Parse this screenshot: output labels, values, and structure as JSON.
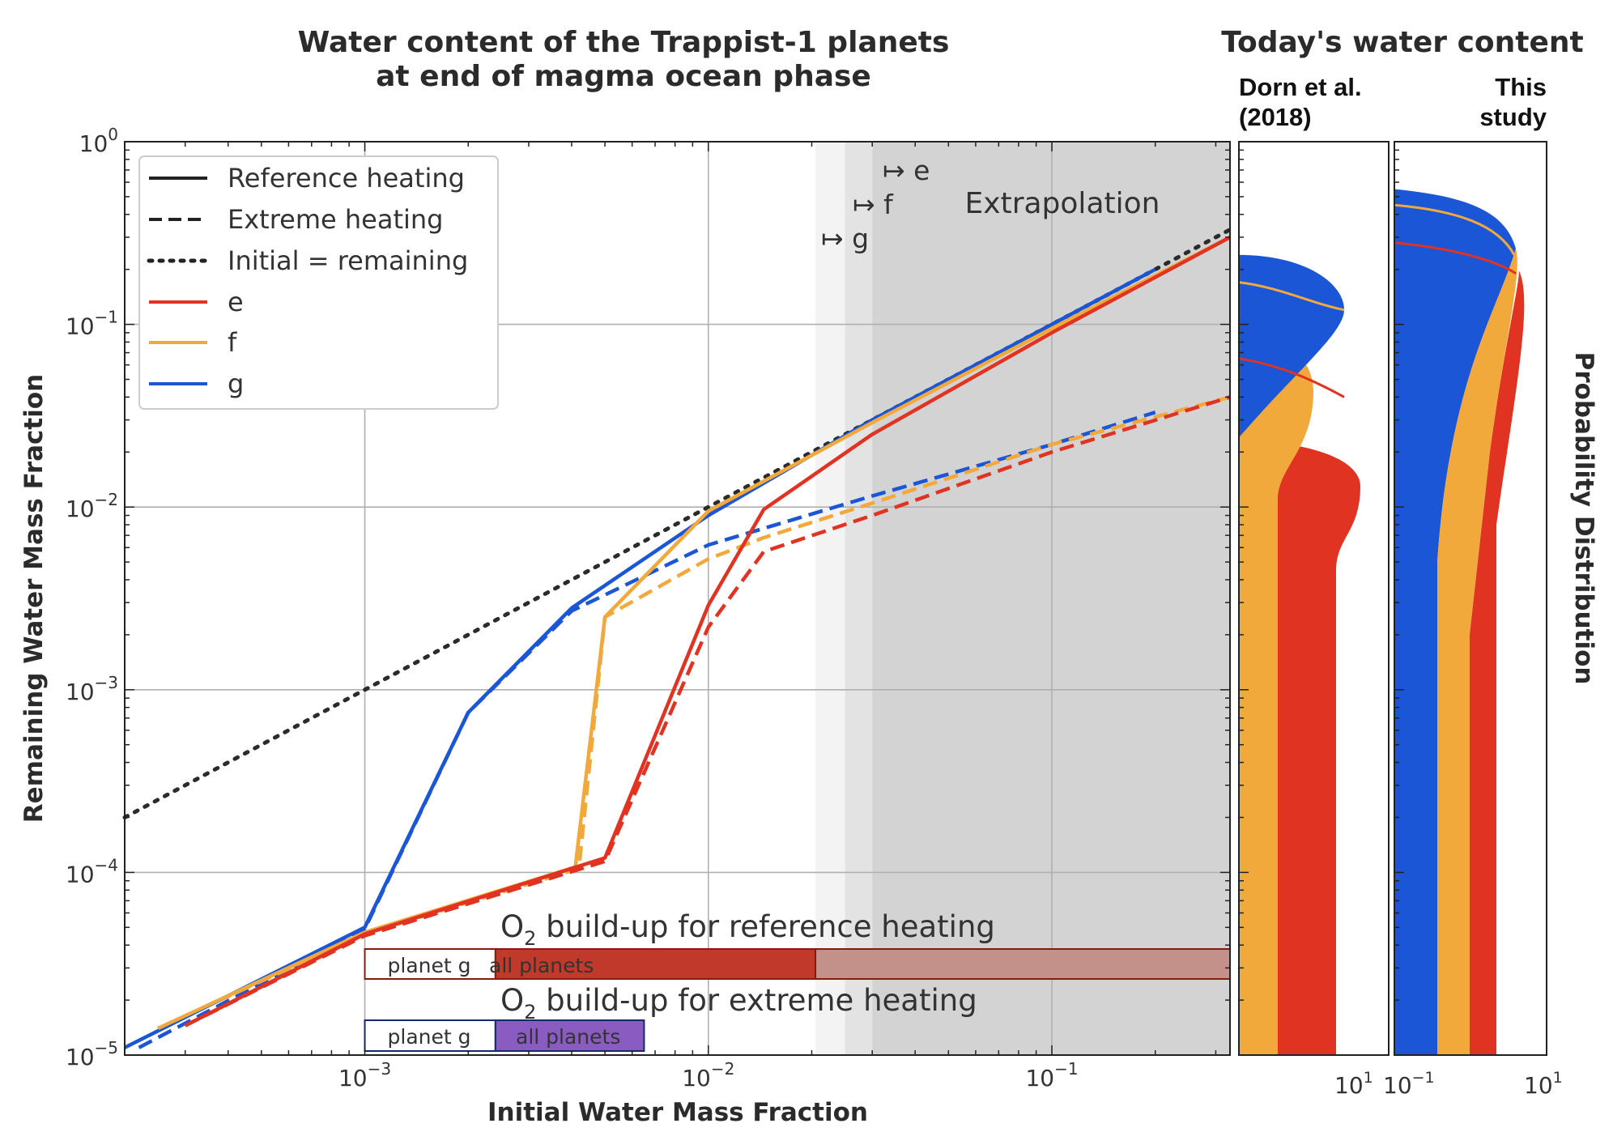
{
  "main_title": {
    "line1": "Water content of the Trappist-1 planets",
    "line2": "at end of magma ocean phase"
  },
  "side_title": "Today's water content",
  "panels": {
    "dorn": {
      "line1": "Dorn et al.",
      "line2": "(2018)",
      "xtick": "10",
      "xtick_exp": "1"
    },
    "study": {
      "line1": "This",
      "line2": "study",
      "xtick_left": "10",
      "xtick_left_exp": "−1",
      "xtick_right": "10",
      "xtick_right_exp": "1"
    }
  },
  "prob_label": "Probability Distribution",
  "extrapolation_label": "Extrapolation",
  "onset_markers": {
    "e": "↦ e",
    "f": "↦ f",
    "g": "↦ g"
  },
  "legend": {
    "reference": "Reference heating",
    "extreme": "Extreme heating",
    "initial": "Initial = remaining",
    "e": "e",
    "f": "f",
    "g": "g"
  },
  "o2_reference": {
    "title_pre": "O",
    "title_sub": "2",
    "title_post": " build-up for reference heating",
    "planet_g": "planet g",
    "all_planets": "all planets"
  },
  "o2_extreme": {
    "title_pre": "O",
    "title_sub": "2",
    "title_post": " build-up for extreme heating",
    "planet_g": "planet g",
    "all_planets": "all planets"
  },
  "colors": {
    "e": "#e03322",
    "f": "#f2a93b",
    "g": "#1a56d6",
    "ref_bar_dark": "#c0392b",
    "ref_bar_light": "#c4918a",
    "ref_text": "#8b1a0e",
    "ext_bar": "#8a5cc2",
    "ext_text": "#142a6b"
  },
  "chart_data": {
    "type": "line",
    "title": "Water content of the Trappist-1 planets at end of magma ocean phase",
    "xlabel": "Initial Water Mass Fraction",
    "ylabel": "Remaining Water Mass Fraction",
    "xscale": "log",
    "yscale": "log",
    "xlim": [
      0.0002,
      0.33
    ],
    "ylim": [
      1e-05,
      1
    ],
    "grid": true,
    "legend_position": "top-left",
    "x_ticks": [
      {
        "base": "10",
        "exp": "−3",
        "value": 0.001
      },
      {
        "base": "10",
        "exp": "−2",
        "value": 0.01
      },
      {
        "base": "10",
        "exp": "−1",
        "value": 0.1
      }
    ],
    "y_ticks": [
      {
        "base": "10",
        "exp": "−5",
        "value": 1e-05
      },
      {
        "base": "10",
        "exp": "−4",
        "value": 0.0001
      },
      {
        "base": "10",
        "exp": "−3",
        "value": 0.001
      },
      {
        "base": "10",
        "exp": "−2",
        "value": 0.01
      },
      {
        "base": "10",
        "exp": "−1",
        "value": 0.1
      },
      {
        "base": "10",
        "exp": "0",
        "value": 1
      }
    ],
    "regions": [
      {
        "x0": 0.0205,
        "x1": 0.025,
        "shade": "#f3f3f3"
      },
      {
        "x0": 0.025,
        "x1": 0.03,
        "shade": "#e3e3e3"
      },
      {
        "x0": 0.03,
        "x1": 0.33,
        "shade": "#d3d3d3"
      }
    ],
    "onsets": {
      "g": 0.021,
      "f": 0.025,
      "e": 0.03
    },
    "series": [
      {
        "name": "Initial = remaining",
        "planet": "none",
        "heating": "initial",
        "points": [
          [
            0.0002,
            0.0002
          ],
          [
            0.33,
            0.33
          ]
        ]
      },
      {
        "name": "g",
        "heating": "reference",
        "points": [
          [
            0.0002,
            1.1e-05
          ],
          [
            0.001,
            5e-05
          ],
          [
            0.002,
            0.00075
          ],
          [
            0.004,
            0.0028
          ],
          [
            0.01,
            0.009
          ],
          [
            0.03,
            0.03
          ],
          [
            0.1,
            0.1
          ],
          [
            0.2,
            0.2
          ]
        ]
      },
      {
        "name": "f",
        "heating": "reference",
        "points": [
          [
            0.00025,
            1.4e-05
          ],
          [
            0.001,
            4.7e-05
          ],
          [
            0.0041,
            0.000107
          ],
          [
            0.005,
            0.0025
          ],
          [
            0.01,
            0.0095
          ],
          [
            0.03,
            0.029
          ],
          [
            0.1,
            0.095
          ],
          [
            0.33,
            0.3
          ]
        ]
      },
      {
        "name": "e",
        "heating": "reference",
        "points": [
          [
            0.0003,
            1.45e-05
          ],
          [
            0.001,
            4.6e-05
          ],
          [
            0.005,
            0.00012
          ],
          [
            0.01,
            0.0029
          ],
          [
            0.0145,
            0.0097
          ],
          [
            0.03,
            0.025
          ],
          [
            0.1,
            0.09
          ],
          [
            0.33,
            0.3
          ]
        ]
      },
      {
        "name": "g",
        "heating": "extreme",
        "points": [
          [
            0.00022,
            1.1e-05
          ],
          [
            0.001,
            4.9e-05
          ],
          [
            0.002,
            0.00075
          ],
          [
            0.004,
            0.0027
          ],
          [
            0.01,
            0.0062
          ],
          [
            0.03,
            0.0115
          ],
          [
            0.1,
            0.022
          ],
          [
            0.2,
            0.033
          ]
        ]
      },
      {
        "name": "f",
        "heating": "extreme",
        "points": [
          [
            0.00025,
            1.4e-05
          ],
          [
            0.001,
            4.6e-05
          ],
          [
            0.0042,
            0.000105
          ],
          [
            0.005,
            0.0025
          ],
          [
            0.01,
            0.0052
          ],
          [
            0.0145,
            0.0068
          ],
          [
            0.03,
            0.0105
          ],
          [
            0.1,
            0.022
          ],
          [
            0.33,
            0.04
          ]
        ]
      },
      {
        "name": "e",
        "heating": "extreme",
        "points": [
          [
            0.0003,
            1.45e-05
          ],
          [
            0.001,
            4.5e-05
          ],
          [
            0.005,
            0.000115
          ],
          [
            0.01,
            0.0022
          ],
          [
            0.0145,
            0.0057
          ],
          [
            0.03,
            0.009
          ],
          [
            0.1,
            0.02
          ],
          [
            0.33,
            0.04
          ]
        ]
      }
    ],
    "o2_bars": [
      {
        "heating": "reference",
        "segment": "planet g",
        "x0": 0.001,
        "x1": 0.0024
      },
      {
        "heating": "reference",
        "segment": "all planets",
        "x0": 0.0024,
        "x1": 0.0205
      },
      {
        "heating": "reference",
        "segment": "extrapolated",
        "x0": 0.0205,
        "x1": 0.33
      },
      {
        "heating": "extreme",
        "segment": "planet g",
        "x0": 0.001,
        "x1": 0.0024
      },
      {
        "heating": "extreme",
        "segment": "all planets",
        "x0": 0.0024,
        "x1": 0.0065
      }
    ]
  }
}
